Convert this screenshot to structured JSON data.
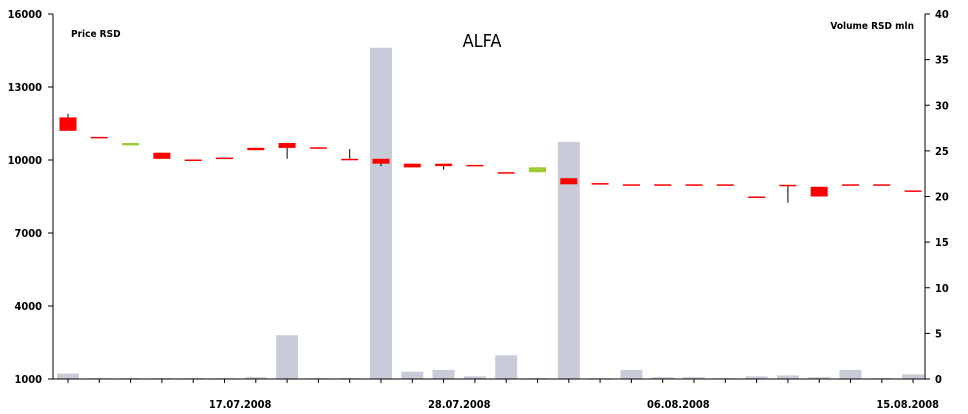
{
  "chart_data": {
    "type": "candlestick",
    "title": "ALFA",
    "y_left_label": "Price RSD",
    "y_right_label": "Volume RSD mln",
    "y_left_ticks": [
      1000,
      4000,
      7000,
      10000,
      13000,
      16000
    ],
    "y_left_range": [
      1000,
      16000
    ],
    "y_right_ticks": [
      0,
      5,
      10,
      15,
      20,
      25,
      30,
      35,
      40
    ],
    "y_right_range": [
      0,
      40
    ],
    "x_tick_labels": [
      {
        "index": 6,
        "label": "17.07.2008"
      },
      {
        "index": 13,
        "label": "28.07.2008"
      },
      {
        "index": 20,
        "label": "06.08.2008"
      },
      {
        "index": 28,
        "label": "15.08.2008"
      }
    ],
    "colors": {
      "down": "#ff0000",
      "up": "#9acd32",
      "volume": "#c8ccd8",
      "wick": "#000000"
    },
    "candles": [
      {
        "open": 11750,
        "close": 11200,
        "high": 11900,
        "low": 11200,
        "volume": 0.6
      },
      {
        "open": 10950,
        "close": 10900,
        "high": 10950,
        "low": 10900,
        "volume": 0.0
      },
      {
        "open": 10600,
        "close": 10700,
        "high": 10700,
        "low": 10600,
        "volume": 0.1
      },
      {
        "open": 10300,
        "close": 10050,
        "high": 10300,
        "low": 10050,
        "volume": 0.1
      },
      {
        "open": 10020,
        "close": 10000,
        "high": 10020,
        "low": 10000,
        "volume": 0.1
      },
      {
        "open": 10100,
        "close": 10080,
        "high": 10100,
        "low": 10080,
        "volume": 0.0
      },
      {
        "open": 10500,
        "close": 10400,
        "high": 10500,
        "low": 10400,
        "volume": 0.2
      },
      {
        "open": 10700,
        "close": 10500,
        "high": 10700,
        "low": 10050,
        "volume": 4.8
      },
      {
        "open": 10520,
        "close": 10500,
        "high": 10520,
        "low": 10500,
        "volume": 0.0
      },
      {
        "open": 10050,
        "close": 10000,
        "high": 10450,
        "low": 10000,
        "volume": 0.1
      },
      {
        "open": 10050,
        "close": 9850,
        "high": 10050,
        "low": 9750,
        "volume": 36.3
      },
      {
        "open": 9850,
        "close": 9700,
        "high": 9850,
        "low": 9700,
        "volume": 0.8
      },
      {
        "open": 9850,
        "close": 9750,
        "high": 9850,
        "low": 9600,
        "volume": 1.0
      },
      {
        "open": 9800,
        "close": 9750,
        "high": 9800,
        "low": 9750,
        "volume": 0.3
      },
      {
        "open": 9500,
        "close": 9480,
        "high": 9500,
        "low": 9480,
        "volume": 2.6
      },
      {
        "open": 9500,
        "close": 9700,
        "high": 9700,
        "low": 9500,
        "volume": 0.1
      },
      {
        "open": 9250,
        "close": 9000,
        "high": 9250,
        "low": 9000,
        "volume": 26.0
      },
      {
        "open": 9050,
        "close": 9030,
        "high": 9050,
        "low": 9030,
        "volume": 0.0
      },
      {
        "open": 9000,
        "close": 8980,
        "high": 9000,
        "low": 8980,
        "volume": 1.0
      },
      {
        "open": 9000,
        "close": 8980,
        "high": 9000,
        "low": 8980,
        "volume": 0.2
      },
      {
        "open": 9000,
        "close": 8980,
        "high": 9000,
        "low": 8980,
        "volume": 0.2
      },
      {
        "open": 9000,
        "close": 8980,
        "high": 9000,
        "low": 8980,
        "volume": 0.0
      },
      {
        "open": 8500,
        "close": 8480,
        "high": 8500,
        "low": 8480,
        "volume": 0.3
      },
      {
        "open": 8980,
        "close": 8960,
        "high": 8980,
        "low": 8250,
        "volume": 0.4
      },
      {
        "open": 8900,
        "close": 8500,
        "high": 8900,
        "low": 8500,
        "volume": 0.2
      },
      {
        "open": 9000,
        "close": 8980,
        "high": 9000,
        "low": 8980,
        "volume": 1.0
      },
      {
        "open": 9000,
        "close": 8980,
        "high": 9000,
        "low": 8980,
        "volume": 0.1
      },
      {
        "open": 8750,
        "close": 8730,
        "high": 8750,
        "low": 8730,
        "volume": 0.5
      }
    ]
  }
}
